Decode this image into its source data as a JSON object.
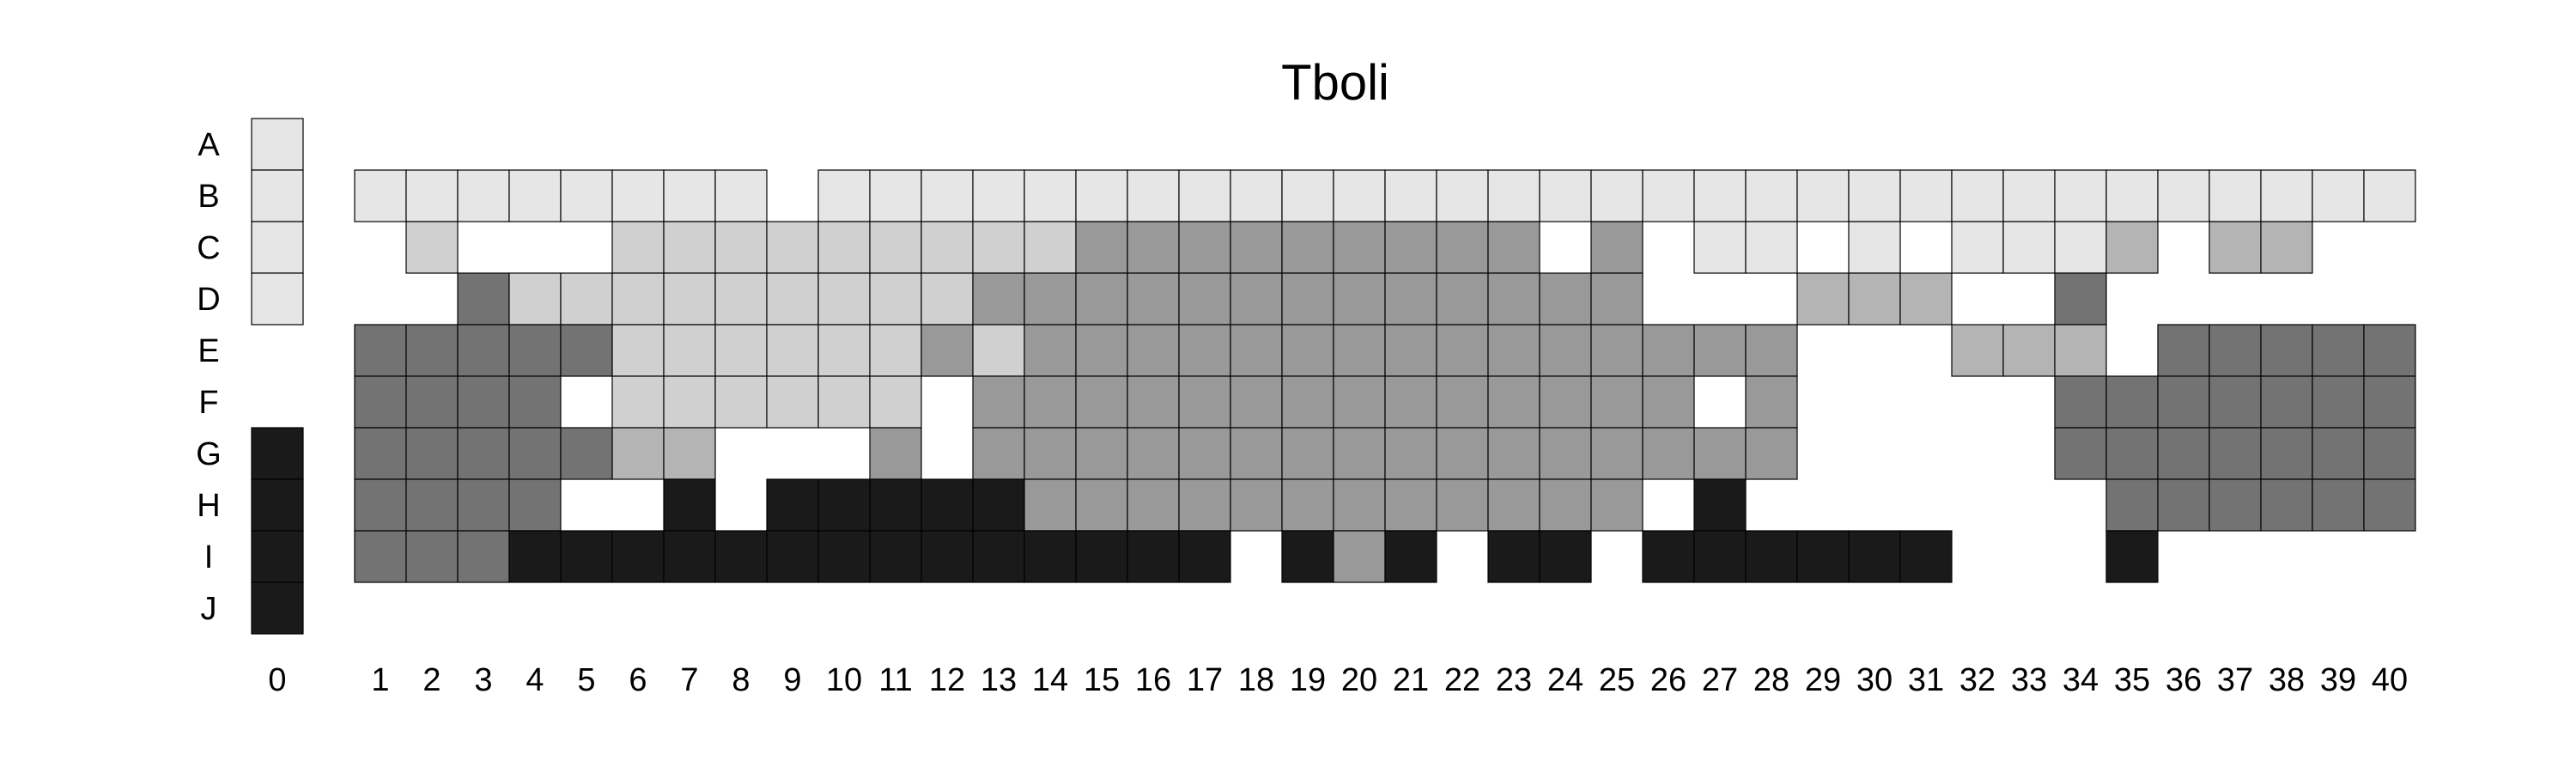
{
  "chart_data": {
    "type": "heatmap",
    "title": "Tboli",
    "rows": [
      "A",
      "B",
      "C",
      "D",
      "E",
      "F",
      "G",
      "H",
      "I",
      "J"
    ],
    "columns": [
      "0",
      "1",
      "2",
      "3",
      "4",
      "5",
      "6",
      "7",
      "8",
      "9",
      "10",
      "11",
      "12",
      "13",
      "14",
      "15",
      "16",
      "17",
      "18",
      "19",
      "20",
      "21",
      "22",
      "23",
      "24",
      "25",
      "26",
      "27",
      "28",
      "29",
      "30",
      "31",
      "32",
      "33",
      "34",
      "35",
      "36",
      "37",
      "38",
      "39",
      "40"
    ],
    "legend_column": {
      "column": "0",
      "cells": {
        "A": 1,
        "B": 1,
        "C": 1,
        "D": 1,
        "G": 5,
        "H": 5,
        "I": 5,
        "J": 5
      }
    },
    "levels": {
      "0": "#ffffff",
      "1": "#e6e6e6",
      "2": "#d0d0d0",
      "3": "#b4b4b4",
      "4": "#999999",
      "5": "#1a1a1a",
      "6": "#737373"
    },
    "grid": {
      "B": "1111111101111111111111111111111111111111",
      "C": "0200022222222244444444404011010111303300",
      "D": "0062222222224444444444444000333006000",
      "E": "6666622222242444444444444444000333066666",
      "F": "6666022222204444444444444404000006666666",
      "G": "6666633000404444444444444444000006666666",
      "H": "6666005055555444444444444050000000666666",
      "I": "6665555555555555505450550555555000500000"
    }
  }
}
